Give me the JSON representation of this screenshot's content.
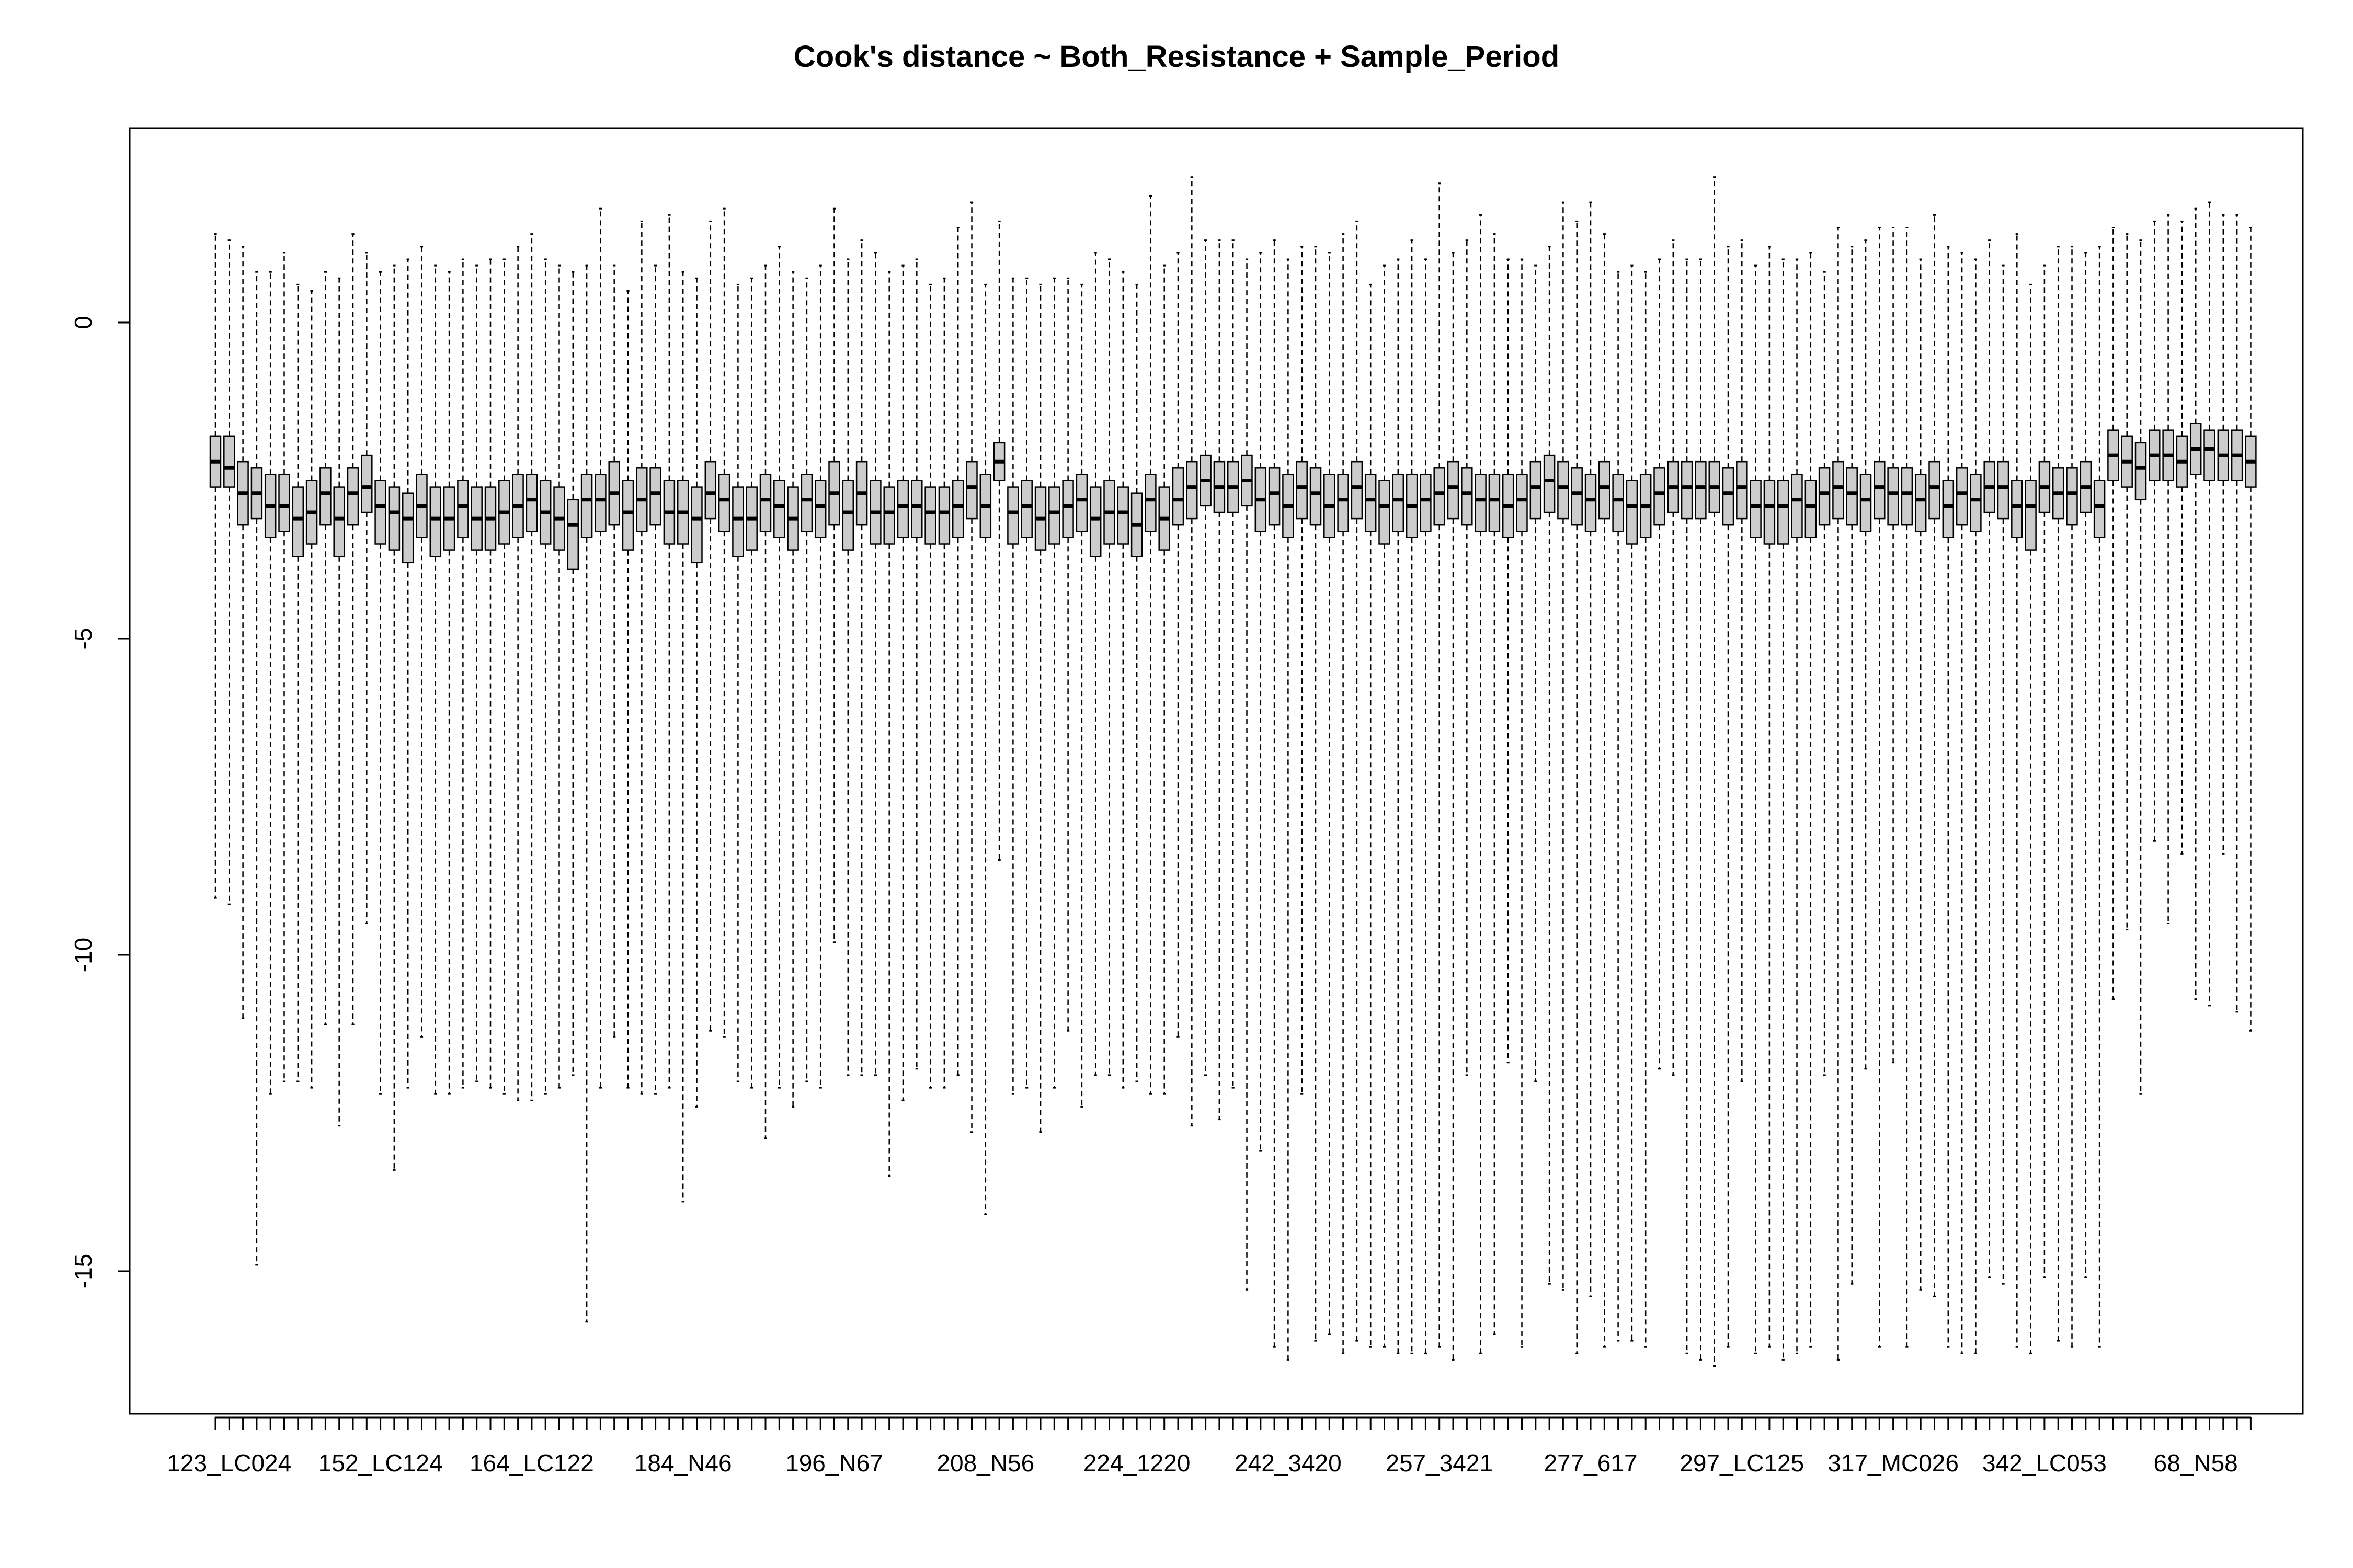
{
  "chart_data": {
    "type": "boxplot",
    "title": "Cook's distance  ~ Both_Resistance + Sample_Period",
    "xlabel": "",
    "ylabel": "",
    "ylim": [
      -17.0,
      3.0
    ],
    "y_ticks": [
      0,
      -5,
      -10,
      -15
    ],
    "y_tick_labels": [
      "0",
      "-5",
      "-10",
      "-15"
    ],
    "x_tick_labels": [
      "123_LC024",
      "152_LC124",
      "164_LC122",
      "184_N46",
      "196_N67",
      "208_N56",
      "224_1220",
      "242_3420",
      "257_3421",
      "277_617",
      "297_LC125",
      "317_MC026",
      "342_LC053",
      "68_N58"
    ],
    "x_label_every": 11,
    "grid": false,
    "legend": "none",
    "colors": {
      "box_fill": "#cccccc",
      "stroke": "#000000",
      "background": "#ffffff"
    },
    "boxes": [
      [
        -9.1,
        -2.6,
        -2.2,
        -1.8,
        1.4
      ],
      [
        -9.2,
        -2.6,
        -2.3,
        -1.8,
        1.3
      ],
      [
        -11.0,
        -3.2,
        -2.7,
        -2.2,
        1.2
      ],
      [
        -14.9,
        -3.1,
        -2.7,
        -2.3,
        0.8
      ],
      [
        -12.2,
        -3.4,
        -2.9,
        -2.4,
        0.8
      ],
      [
        -12.0,
        -3.3,
        -2.9,
        -2.4,
        1.1
      ],
      [
        -12.0,
        -3.7,
        -3.1,
        -2.6,
        0.6
      ],
      [
        -12.1,
        -3.5,
        -3.0,
        -2.5,
        0.5
      ],
      [
        -11.1,
        -3.2,
        -2.7,
        -2.3,
        0.8
      ],
      [
        -12.7,
        -3.7,
        -3.1,
        -2.6,
        0.7
      ],
      [
        -11.1,
        -3.2,
        -2.7,
        -2.3,
        1.4
      ],
      [
        -9.5,
        -3.0,
        -2.6,
        -2.1,
        1.1
      ],
      [
        -12.2,
        -3.5,
        -2.9,
        -2.5,
        0.8
      ],
      [
        -13.4,
        -3.6,
        -3.0,
        -2.6,
        0.9
      ],
      [
        -12.1,
        -3.8,
        -3.1,
        -2.7,
        1.0
      ],
      [
        -11.3,
        -3.4,
        -2.9,
        -2.4,
        1.2
      ],
      [
        -12.2,
        -3.7,
        -3.1,
        -2.6,
        0.9
      ],
      [
        -12.2,
        -3.6,
        -3.1,
        -2.6,
        0.8
      ],
      [
        -12.1,
        -3.4,
        -2.9,
        -2.5,
        1.0
      ],
      [
        -12.0,
        -3.6,
        -3.1,
        -2.6,
        0.9
      ],
      [
        -12.1,
        -3.6,
        -3.1,
        -2.6,
        1.0
      ],
      [
        -12.2,
        -3.5,
        -3.0,
        -2.5,
        1.0
      ],
      [
        -12.3,
        -3.4,
        -2.9,
        -2.4,
        1.2
      ],
      [
        -12.3,
        -3.3,
        -2.8,
        -2.4,
        1.4
      ],
      [
        -12.2,
        -3.5,
        -3.0,
        -2.5,
        1.0
      ],
      [
        -12.1,
        -3.6,
        -3.1,
        -2.6,
        0.9
      ],
      [
        -11.9,
        -3.9,
        -3.2,
        -2.8,
        0.8
      ],
      [
        -15.8,
        -3.4,
        -2.8,
        -2.4,
        0.9
      ],
      [
        -12.1,
        -3.3,
        -2.8,
        -2.4,
        1.8
      ],
      [
        -11.3,
        -3.2,
        -2.7,
        -2.2,
        0.9
      ],
      [
        -12.1,
        -3.6,
        -3.0,
        -2.5,
        0.5
      ],
      [
        -12.2,
        -3.3,
        -2.8,
        -2.3,
        1.6
      ],
      [
        -12.2,
        -3.2,
        -2.7,
        -2.3,
        0.9
      ],
      [
        -12.1,
        -3.5,
        -3.0,
        -2.5,
        1.7
      ],
      [
        -13.9,
        -3.5,
        -3.0,
        -2.5,
        0.8
      ],
      [
        -12.4,
        -3.8,
        -3.1,
        -2.6,
        0.7
      ],
      [
        -11.2,
        -3.1,
        -2.7,
        -2.2,
        1.6
      ],
      [
        -11.3,
        -3.3,
        -2.8,
        -2.4,
        1.8
      ],
      [
        -12.0,
        -3.7,
        -3.1,
        -2.6,
        0.6
      ],
      [
        -12.1,
        -3.6,
        -3.1,
        -2.6,
        0.7
      ],
      [
        -12.9,
        -3.3,
        -2.8,
        -2.4,
        0.9
      ],
      [
        -12.1,
        -3.4,
        -2.9,
        -2.5,
        1.2
      ],
      [
        -12.4,
        -3.6,
        -3.1,
        -2.6,
        0.8
      ],
      [
        -12.0,
        -3.3,
        -2.8,
        -2.4,
        0.7
      ],
      [
        -12.1,
        -3.4,
        -2.9,
        -2.5,
        0.9
      ],
      [
        -9.8,
        -3.2,
        -2.7,
        -2.2,
        1.8
      ],
      [
        -11.9,
        -3.6,
        -3.0,
        -2.5,
        1.0
      ],
      [
        -11.9,
        -3.2,
        -2.7,
        -2.2,
        1.3
      ],
      [
        -11.9,
        -3.5,
        -3.0,
        -2.5,
        1.1
      ],
      [
        -13.5,
        -3.5,
        -3.0,
        -2.6,
        0.8
      ],
      [
        -12.3,
        -3.4,
        -2.9,
        -2.5,
        0.9
      ],
      [
        -11.8,
        -3.4,
        -2.9,
        -2.5,
        1.0
      ],
      [
        -12.1,
        -3.5,
        -3.0,
        -2.6,
        0.6
      ],
      [
        -12.1,
        -3.5,
        -3.0,
        -2.6,
        0.7
      ],
      [
        -11.9,
        -3.4,
        -2.9,
        -2.5,
        1.5
      ],
      [
        -12.8,
        -3.1,
        -2.6,
        -2.2,
        1.9
      ],
      [
        -14.1,
        -3.4,
        -2.9,
        -2.4,
        0.6
      ],
      [
        -8.5,
        -2.5,
        -2.2,
        -1.9,
        1.6
      ],
      [
        -12.2,
        -3.5,
        -3.0,
        -2.6,
        0.7
      ],
      [
        -12.1,
        -3.4,
        -2.9,
        -2.5,
        0.7
      ],
      [
        -12.8,
        -3.6,
        -3.1,
        -2.6,
        0.6
      ],
      [
        -12.1,
        -3.5,
        -3.0,
        -2.6,
        0.7
      ],
      [
        -11.2,
        -3.4,
        -2.9,
        -2.5,
        0.7
      ],
      [
        -12.4,
        -3.3,
        -2.8,
        -2.4,
        0.6
      ],
      [
        -11.9,
        -3.7,
        -3.1,
        -2.6,
        1.1
      ],
      [
        -11.9,
        -3.5,
        -3.0,
        -2.5,
        1.0
      ],
      [
        -12.1,
        -3.5,
        -3.0,
        -2.6,
        0.8
      ],
      [
        -12.0,
        -3.7,
        -3.2,
        -2.7,
        0.6
      ],
      [
        -12.2,
        -3.3,
        -2.8,
        -2.4,
        2.0
      ],
      [
        -12.2,
        -3.6,
        -3.1,
        -2.6,
        0.9
      ],
      [
        -11.3,
        -3.2,
        -2.8,
        -2.3,
        1.1
      ],
      [
        -12.7,
        -3.1,
        -2.6,
        -2.2,
        2.3
      ],
      [
        -11.9,
        -2.9,
        -2.5,
        -2.1,
        1.3
      ],
      [
        -12.6,
        -3.0,
        -2.6,
        -2.2,
        1.3
      ],
      [
        -12.1,
        -3.0,
        -2.6,
        -2.2,
        1.3
      ],
      [
        -15.3,
        -2.9,
        -2.5,
        -2.1,
        1.0
      ],
      [
        -13.1,
        -3.3,
        -2.8,
        -2.3,
        1.1
      ],
      [
        -16.2,
        -3.2,
        -2.7,
        -2.3,
        1.3
      ],
      [
        -16.4,
        -3.4,
        -2.9,
        -2.4,
        1.0
      ],
      [
        -12.2,
        -3.1,
        -2.6,
        -2.2,
        1.2
      ],
      [
        -16.1,
        -3.2,
        -2.7,
        -2.3,
        1.2
      ],
      [
        -16.0,
        -3.4,
        -2.9,
        -2.4,
        1.1
      ],
      [
        -16.3,
        -3.3,
        -2.8,
        -2.4,
        1.4
      ],
      [
        -16.1,
        -3.1,
        -2.6,
        -2.2,
        1.6
      ],
      [
        -16.2,
        -3.3,
        -2.8,
        -2.4,
        0.6
      ],
      [
        -16.2,
        -3.5,
        -2.9,
        -2.5,
        0.9
      ],
      [
        -16.3,
        -3.3,
        -2.8,
        -2.4,
        1.0
      ],
      [
        -16.3,
        -3.4,
        -2.9,
        -2.4,
        1.3
      ],
      [
        -16.3,
        -3.3,
        -2.8,
        -2.4,
        1.0
      ],
      [
        -16.2,
        -3.2,
        -2.7,
        -2.3,
        2.2
      ],
      [
        -16.4,
        -3.1,
        -2.6,
        -2.2,
        1.1
      ],
      [
        -11.9,
        -3.2,
        -2.7,
        -2.3,
        1.3
      ],
      [
        -16.3,
        -3.3,
        -2.8,
        -2.4,
        1.7
      ],
      [
        -16.0,
        -3.3,
        -2.8,
        -2.4,
        1.4
      ],
      [
        -11.7,
        -3.4,
        -2.9,
        -2.4,
        1.0
      ],
      [
        -16.2,
        -3.3,
        -2.8,
        -2.4,
        1.0
      ],
      [
        -12.0,
        -3.1,
        -2.6,
        -2.2,
        0.9
      ],
      [
        -15.2,
        -3.0,
        -2.5,
        -2.1,
        1.2
      ],
      [
        -15.3,
        -3.1,
        -2.6,
        -2.2,
        1.9
      ],
      [
        -16.3,
        -3.2,
        -2.7,
        -2.3,
        1.6
      ],
      [
        -15.4,
        -3.3,
        -2.8,
        -2.4,
        1.9
      ],
      [
        -16.2,
        -3.1,
        -2.6,
        -2.2,
        1.4
      ],
      [
        -16.1,
        -3.3,
        -2.8,
        -2.4,
        0.8
      ],
      [
        -16.1,
        -3.5,
        -2.9,
        -2.5,
        0.9
      ],
      [
        -16.2,
        -3.4,
        -2.9,
        -2.4,
        0.8
      ],
      [
        -11.8,
        -3.2,
        -2.7,
        -2.3,
        1.0
      ],
      [
        -11.9,
        -3.0,
        -2.6,
        -2.2,
        1.3
      ],
      [
        -16.3,
        -3.1,
        -2.6,
        -2.2,
        1.0
      ],
      [
        -16.4,
        -3.1,
        -2.6,
        -2.2,
        1.0
      ],
      [
        -16.5,
        -3.0,
        -2.6,
        -2.2,
        2.3
      ],
      [
        -16.2,
        -3.2,
        -2.7,
        -2.3,
        1.2
      ],
      [
        -12.0,
        -3.1,
        -2.6,
        -2.2,
        1.3
      ],
      [
        -16.3,
        -3.4,
        -2.9,
        -2.5,
        0.9
      ],
      [
        -16.2,
        -3.5,
        -2.9,
        -2.5,
        1.2
      ],
      [
        -16.4,
        -3.5,
        -2.9,
        -2.5,
        1.0
      ],
      [
        -16.3,
        -3.4,
        -2.8,
        -2.4,
        1.0
      ],
      [
        -16.2,
        -3.4,
        -2.9,
        -2.5,
        1.1
      ],
      [
        -11.9,
        -3.2,
        -2.7,
        -2.3,
        0.8
      ],
      [
        -16.4,
        -3.1,
        -2.6,
        -2.2,
        1.5
      ],
      [
        -15.2,
        -3.2,
        -2.7,
        -2.3,
        1.2
      ],
      [
        -11.8,
        -3.3,
        -2.8,
        -2.4,
        1.3
      ],
      [
        -16.2,
        -3.1,
        -2.6,
        -2.2,
        1.5
      ],
      [
        -11.7,
        -3.2,
        -2.7,
        -2.3,
        1.5
      ],
      [
        -16.2,
        -3.2,
        -2.7,
        -2.3,
        1.5
      ],
      [
        -15.3,
        -3.3,
        -2.8,
        -2.4,
        1.0
      ],
      [
        -15.4,
        -3.1,
        -2.6,
        -2.2,
        1.7
      ],
      [
        -16.2,
        -3.4,
        -2.9,
        -2.5,
        1.2
      ],
      [
        -16.3,
        -3.2,
        -2.7,
        -2.3,
        1.1
      ],
      [
        -16.3,
        -3.3,
        -2.8,
        -2.4,
        1.0
      ],
      [
        -15.1,
        -3.0,
        -2.6,
        -2.2,
        1.3
      ],
      [
        -15.2,
        -3.1,
        -2.6,
        -2.2,
        0.9
      ],
      [
        -16.2,
        -3.4,
        -2.9,
        -2.5,
        1.4
      ],
      [
        -16.3,
        -3.6,
        -2.9,
        -2.5,
        0.6
      ],
      [
        -15.1,
        -3.0,
        -2.6,
        -2.2,
        0.9
      ],
      [
        -16.1,
        -3.1,
        -2.7,
        -2.3,
        1.2
      ],
      [
        -16.2,
        -3.2,
        -2.7,
        -2.3,
        1.2
      ],
      [
        -15.1,
        -3.0,
        -2.6,
        -2.2,
        1.1
      ],
      [
        -16.2,
        -3.4,
        -2.9,
        -2.5,
        1.2
      ],
      [
        -10.7,
        -2.5,
        -2.1,
        -1.7,
        1.5
      ],
      [
        -9.6,
        -2.6,
        -2.2,
        -1.8,
        1.4
      ],
      [
        -12.2,
        -2.8,
        -2.3,
        -1.9,
        1.3
      ],
      [
        -8.2,
        -2.5,
        -2.1,
        -1.7,
        1.6
      ],
      [
        -9.5,
        -2.5,
        -2.1,
        -1.7,
        1.7
      ],
      [
        -8.4,
        -2.6,
        -2.2,
        -1.8,
        1.6
      ],
      [
        -10.7,
        -2.4,
        -2.0,
        -1.6,
        1.8
      ],
      [
        -10.8,
        -2.5,
        -2.0,
        -1.7,
        1.9
      ],
      [
        -8.4,
        -2.5,
        -2.1,
        -1.7,
        1.7
      ],
      [
        -10.9,
        -2.5,
        -2.1,
        -1.7,
        1.7
      ],
      [
        -11.2,
        -2.6,
        -2.2,
        -1.8,
        1.5
      ]
    ]
  }
}
